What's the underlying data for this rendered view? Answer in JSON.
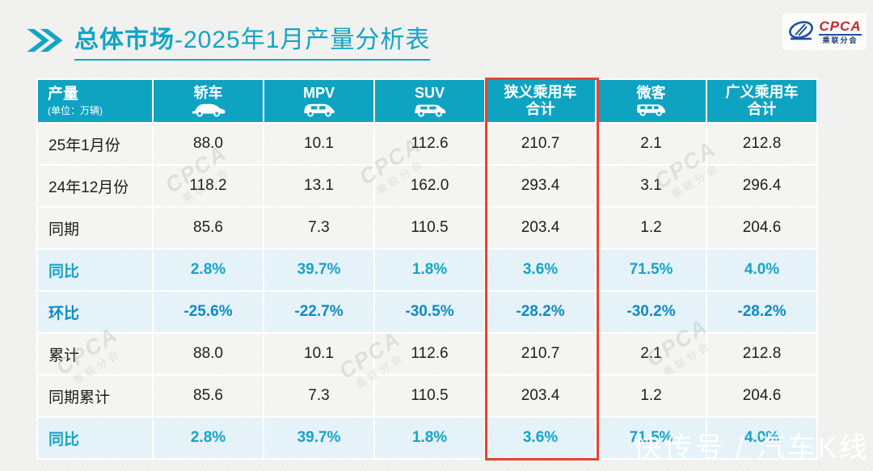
{
  "page": {
    "title_bold": "总体市场",
    "title_rest": "-2025年1月产量分析表"
  },
  "logo": {
    "name": "CPCA",
    "subtitle": "乘联分会"
  },
  "watermark": {
    "diagonal_main": "CPCA",
    "diagonal_sub": "乘联分会",
    "footer": "快传号 / 汽车K线"
  },
  "colors": {
    "accent_teal": "#0fa3c2",
    "title_teal": "#11a5c6",
    "highlight_red": "#e8432c",
    "yoy_text": "#18a4c8",
    "mom_text": "#0e8bc4",
    "row_blue_bg": "#e3f1f8",
    "row_gray_bg": "#f5f5f3"
  },
  "chart_data": {
    "type": "table",
    "title": "总体市场-2025年1月产量分析表",
    "corner_header": {
      "title": "产量",
      "unit_note": "(单位：万辆)"
    },
    "columns": [
      {
        "label": "轿车",
        "icon": "sedan-icon"
      },
      {
        "label": "MPV",
        "icon": "mpv-icon"
      },
      {
        "label": "SUV",
        "icon": "suv-icon"
      },
      {
        "label": "狭义乘用车合计",
        "label_lines": [
          "狭义乘用车",
          "合计"
        ],
        "highlighted": true
      },
      {
        "label": "微客",
        "icon": "microvan-icon"
      },
      {
        "label": "广义乘用车合计",
        "label_lines": [
          "广义乘用车",
          "合计"
        ]
      }
    ],
    "highlighted_column": "狭义乘用车合计",
    "rows": [
      {
        "label": "25年1月份",
        "style": "normal",
        "values": [
          "88.0",
          "10.1",
          "112.6",
          "210.7",
          "2.1",
          "212.8"
        ]
      },
      {
        "label": "24年12月份",
        "style": "normal",
        "values": [
          "118.2",
          "13.1",
          "162.0",
          "293.4",
          "3.1",
          "296.4"
        ]
      },
      {
        "label": "同期",
        "style": "normal",
        "values": [
          "85.6",
          "7.3",
          "110.5",
          "203.4",
          "1.2",
          "204.6"
        ]
      },
      {
        "label": "同比",
        "style": "yoy",
        "values": [
          "2.8%",
          "39.7%",
          "1.8%",
          "3.6%",
          "71.5%",
          "4.0%"
        ]
      },
      {
        "label": "环比",
        "style": "mom",
        "values": [
          "-25.6%",
          "-22.7%",
          "-30.5%",
          "-28.2%",
          "-30.2%",
          "-28.2%"
        ]
      },
      {
        "label": "累计",
        "style": "normal",
        "values": [
          "88.0",
          "10.1",
          "112.6",
          "210.7",
          "2.1",
          "212.8"
        ]
      },
      {
        "label": "同期累计",
        "style": "normal",
        "values": [
          "85.6",
          "7.3",
          "110.5",
          "203.4",
          "1.2",
          "204.6"
        ]
      },
      {
        "label": "同比",
        "style": "yoy",
        "values": [
          "2.8%",
          "39.7%",
          "1.8%",
          "3.6%",
          "71.5%",
          "4.0%"
        ]
      }
    ]
  }
}
